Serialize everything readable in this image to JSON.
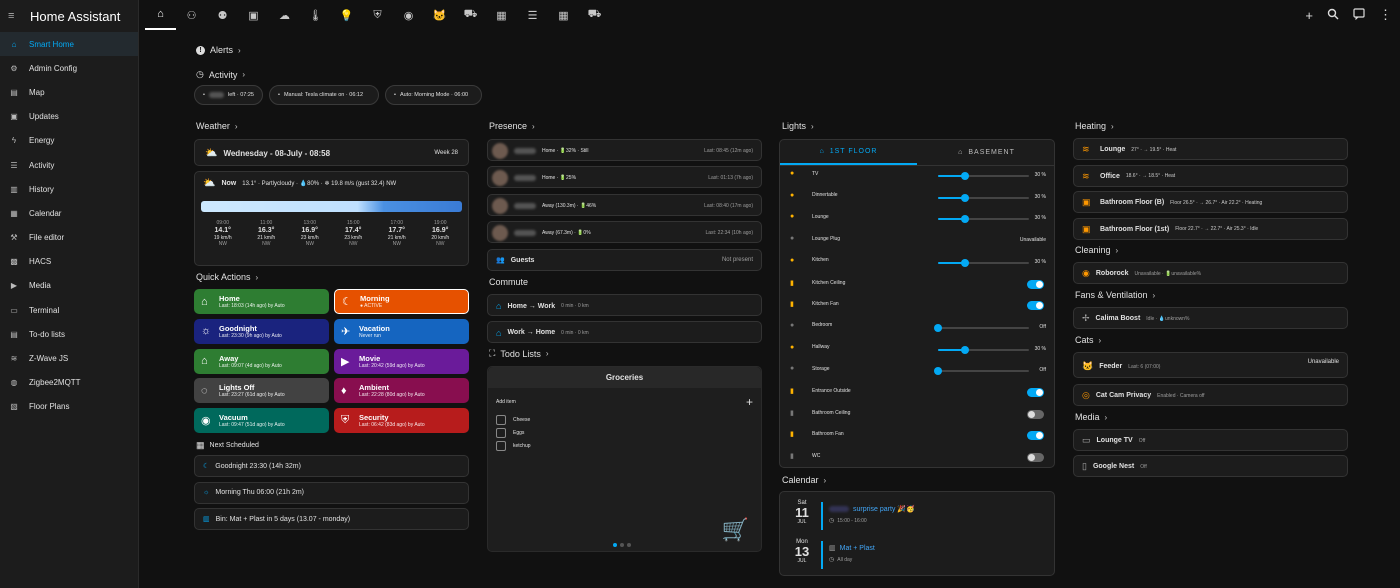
{
  "app": {
    "title": "Home Assistant"
  },
  "sidebar": {
    "items": [
      {
        "label": "Smart Home",
        "icon": "home-icon",
        "active": true
      },
      {
        "label": "Admin Config",
        "icon": "gear-icon"
      },
      {
        "label": "Map",
        "icon": "map-icon"
      },
      {
        "label": "Updates",
        "icon": "updates-icon"
      },
      {
        "label": "Energy",
        "icon": "lightning-icon"
      },
      {
        "label": "Activity",
        "icon": "activity-icon"
      },
      {
        "label": "History",
        "icon": "chart-icon"
      },
      {
        "label": "Calendar",
        "icon": "calendar-icon"
      },
      {
        "label": "File editor",
        "icon": "wrench-icon"
      },
      {
        "label": "HACS",
        "icon": "hacs-icon"
      },
      {
        "label": "Media",
        "icon": "media-icon"
      },
      {
        "label": "Terminal",
        "icon": "terminal-icon"
      },
      {
        "label": "To-do lists",
        "icon": "clipboard-icon"
      },
      {
        "label": "Z-Wave JS",
        "icon": "zwave-icon"
      },
      {
        "label": "Zigbee2MQTT",
        "icon": "zigbee-icon"
      },
      {
        "label": "Floor Plans",
        "icon": "floorplan-icon"
      }
    ]
  },
  "topbar": {
    "tabs": [
      "home-icon",
      "people-group-icon",
      "people-icon",
      "chart-box-icon",
      "weather-icon",
      "thermometer-icon",
      "lightbulb-icon",
      "shield-icon",
      "robot-vacuum-icon",
      "cat-icon",
      "car-icon",
      "devices-icon",
      "server-icon",
      "calendar-icon",
      "bus-icon"
    ]
  },
  "alerts": {
    "title": "Alerts"
  },
  "activity": {
    "title": "Activity",
    "chips": [
      "left · 07:25",
      "Manual: Tesla climate on · 06:12",
      "Auto: Morning Mode · 06:00"
    ]
  },
  "weather": {
    "title": "Weather",
    "date": "Wednesday - 08-July - 08:58",
    "week": "Week 28",
    "now": {
      "label": "Now",
      "detail": "13.1° · Partlycloudy · 💧80% · ❄ 19.8 m/s (gust 32.4) NW"
    },
    "hours": [
      {
        "time": "09:00",
        "temp": "14.1°",
        "wind": "19 km/h",
        "dir": "NW"
      },
      {
        "time": "11:00",
        "temp": "16.3°",
        "wind": "21 km/h",
        "dir": "NW"
      },
      {
        "time": "13:00",
        "temp": "16.9°",
        "wind": "23 km/h",
        "dir": "NW"
      },
      {
        "time": "15:00",
        "temp": "17.4°",
        "wind": "23 km/h",
        "dir": "NW"
      },
      {
        "time": "17:00",
        "temp": "17.7°",
        "wind": "21 km/h",
        "dir": "NW"
      },
      {
        "time": "19:00",
        "temp": "16.9°",
        "wind": "20 km/h",
        "dir": "NW"
      }
    ]
  },
  "quick_actions": {
    "title": "Quick Actions",
    "items": [
      {
        "name": "Home",
        "sub": "Last: 18:03 (14h ago) by Auto",
        "color": "#2e7d32"
      },
      {
        "name": "Morning",
        "sub": "● ACTIVE",
        "color": "#e65100"
      },
      {
        "name": "Goodnight",
        "sub": "Last: 23:30 (9h ago) by Auto",
        "color": "#1a237e"
      },
      {
        "name": "Vacation",
        "sub": "Never run",
        "color": "#1565c0"
      },
      {
        "name": "Away",
        "sub": "Last: 09:07 (4d ago) by Auto",
        "color": "#2e7d32"
      },
      {
        "name": "Movie",
        "sub": "Last: 20:42 (59d ago) by Auto",
        "color": "#6a1b9a"
      },
      {
        "name": "Lights Off",
        "sub": "Last: 23:27 (61d ago) by Auto",
        "color": "#424242"
      },
      {
        "name": "Ambient",
        "sub": "Last: 22:28 (80d ago) by Auto",
        "color": "#880e4f"
      },
      {
        "name": "Vacuum",
        "sub": "Last: 09:47 (51d ago) by Auto",
        "color": "#00695c"
      },
      {
        "name": "Security",
        "sub": "Last: 06:42 (83d ago) by Auto",
        "color": "#b71c1c"
      }
    ]
  },
  "next_scheduled": {
    "title": "Next Scheduled",
    "items": [
      "Goodnight 23:30 (14h 32m)",
      "Morning Thu 06:00 (21h 2m)",
      "Bin: Mat + Plast in 5 days (13.07 - monday)"
    ]
  },
  "presence": {
    "title": "Presence",
    "people": [
      {
        "text": "Home · 🔋32% · Still",
        "last": "Last: 08:45 (12m ago)"
      },
      {
        "text": "Home · 🔋25%",
        "last": "Last: 01:13 (7h ago)"
      },
      {
        "text": "Away (130.3m) · 🔋46%",
        "last": "Last: 08:40 (17m ago)"
      },
      {
        "text": "Away (67.3m) · 🔋0%",
        "last": "Last: 22:34 (10h ago)"
      }
    ],
    "guests": {
      "label": "Guests",
      "status": "Not present"
    }
  },
  "commute": {
    "title": "Commute",
    "items": [
      {
        "route": "Home → Work",
        "detail": "0 min · 0 km"
      },
      {
        "route": "Work → Home",
        "detail": "0 min · 0 km"
      }
    ]
  },
  "todo": {
    "title": "Todo Lists",
    "list_name": "Groceries",
    "add_label": "Add item",
    "items": [
      "Cheese",
      "Eggs",
      "ketchup"
    ]
  },
  "lights": {
    "title": "Lights",
    "tabs": [
      "1ST FLOOR",
      "BASEMENT"
    ],
    "items": [
      {
        "name": "TV",
        "kind": "slider",
        "value": 30,
        "label": "30 %"
      },
      {
        "name": "Dinnertable",
        "kind": "slider",
        "value": 30,
        "label": "30 %"
      },
      {
        "name": "Lounge",
        "kind": "slider",
        "value": 30,
        "label": "30 %"
      },
      {
        "name": "Lounge Plug",
        "kind": "text",
        "label": "Unavailable"
      },
      {
        "name": "Kitchen",
        "kind": "slider",
        "value": 30,
        "label": "30 %"
      },
      {
        "name": "Kitchen Ceiling",
        "kind": "toggle",
        "on": true
      },
      {
        "name": "Kitchen Fan",
        "kind": "toggle",
        "on": true
      },
      {
        "name": "Bedroom",
        "kind": "slider",
        "value": 0,
        "label": "Off"
      },
      {
        "name": "Hallway",
        "kind": "slider",
        "value": 30,
        "label": "30 %"
      },
      {
        "name": "Storage",
        "kind": "slider",
        "value": 0,
        "label": "Off"
      },
      {
        "name": "Entrance Outside",
        "kind": "toggle",
        "on": true
      },
      {
        "name": "Bathroom Ceiling",
        "kind": "toggle",
        "on": false
      },
      {
        "name": "Bathroom Fan",
        "kind": "toggle",
        "on": true
      },
      {
        "name": "WC",
        "kind": "toggle",
        "on": false
      }
    ]
  },
  "calendar": {
    "title": "Calendar",
    "events": [
      {
        "dow": "Sat",
        "day": "11",
        "mon": "JUL",
        "title": "surprise party 🎉🥳",
        "time": "15:00 - 16:00"
      },
      {
        "dow": "Mon",
        "day": "13",
        "mon": "JUL",
        "title": "Mat + Plast",
        "time": "All day"
      }
    ]
  },
  "heating": {
    "title": "Heating",
    "items": [
      {
        "name": "Lounge",
        "detail": "27° · → 19.5° · Heat"
      },
      {
        "name": "Office",
        "detail": "18.6° · → 18.5° · Heat"
      },
      {
        "name": "Bathroom Floor (B)",
        "detail": "Floor 26.5° · → 26.7° · Air 22.2° · Heating"
      },
      {
        "name": "Bathroom Floor (1st)",
        "detail": "Floor 22.7° · → 22.7° · Air 25.3° · Idle"
      }
    ]
  },
  "cleaning": {
    "title": "Cleaning",
    "name": "Roborock",
    "detail": "Unavailable · 🔋unavailable%"
  },
  "fans": {
    "title": "Fans & Ventilation",
    "name": "Calima Boost",
    "detail": "Idle · 💧unknown%"
  },
  "cats": {
    "title": "Cats",
    "feeder": {
      "name": "Feeder",
      "detail": "Last: 6 (07:00)",
      "status": "Unavailable"
    },
    "cam": {
      "name": "Cat Cam Privacy",
      "detail": "Enabled · Camera off"
    }
  },
  "media": {
    "title": "Media",
    "items": [
      {
        "name": "Lounge TV",
        "state": "Off"
      },
      {
        "name": "Google Nest",
        "state": "Off"
      }
    ]
  },
  "colors": {
    "accent": "#03a9f4",
    "bg": "#111111",
    "card": "#1c1c1c",
    "heat": "#ff9800"
  }
}
